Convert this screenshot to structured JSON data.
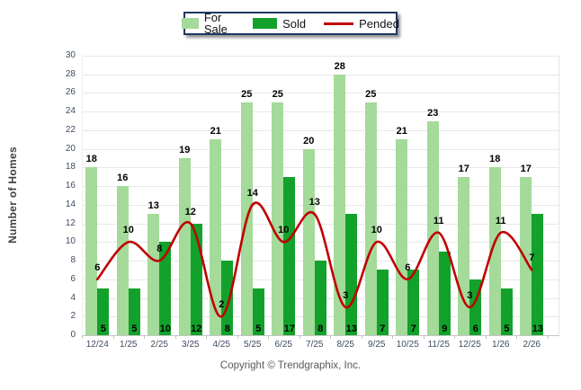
{
  "legend": {
    "items": [
      {
        "label": "For Sale",
        "swatch": "rect",
        "color": "#A4DA9A"
      },
      {
        "label": "Sold",
        "swatch": "rect",
        "color": "#12A22B"
      },
      {
        "label": "Pended",
        "swatch": "line",
        "color": "#C00000"
      }
    ]
  },
  "y_axis": {
    "title": "Number of Homes",
    "min": 0,
    "max": 30,
    "step": 2
  },
  "footer": {
    "copyright": "Copyright © Trendgraphix, Inc."
  },
  "colors": {
    "for_sale": "#A4DA9A",
    "sold": "#12A22B",
    "pended": "#C00000",
    "gridline": "#E8E8E8",
    "axis_text": "#3D4C63",
    "legend_border": "#1F3864"
  },
  "chart_data": {
    "type": "bar",
    "subtype": "grouped bars with smooth overlay line",
    "categories": [
      "12/24",
      "1/25",
      "2/25",
      "3/25",
      "4/25",
      "5/25",
      "6/25",
      "7/25",
      "8/25",
      "9/25",
      "10/25",
      "11/25",
      "12/25",
      "1/26",
      "2/26"
    ],
    "series": [
      {
        "name": "For Sale",
        "type": "bar",
        "color": "#A4DA9A",
        "values": [
          18,
          16,
          13,
          19,
          21,
          25,
          25,
          20,
          28,
          25,
          21,
          23,
          17,
          18,
          17
        ]
      },
      {
        "name": "Sold",
        "type": "bar",
        "color": "#12A22B",
        "values": [
          5,
          5,
          10,
          12,
          8,
          5,
          17,
          8,
          13,
          7,
          7,
          9,
          6,
          5,
          13
        ]
      },
      {
        "name": "Pended",
        "type": "line",
        "color": "#C00000",
        "values": [
          6,
          10,
          8,
          12,
          2,
          14,
          10,
          13,
          3,
          10,
          6,
          11,
          3,
          11,
          7
        ]
      }
    ],
    "title": "",
    "xlabel": "",
    "ylabel": "Number of Homes",
    "ylim": [
      0,
      30
    ],
    "ytick_step": 2,
    "grid": true,
    "value_labels": true,
    "legend_position": "top-center"
  }
}
